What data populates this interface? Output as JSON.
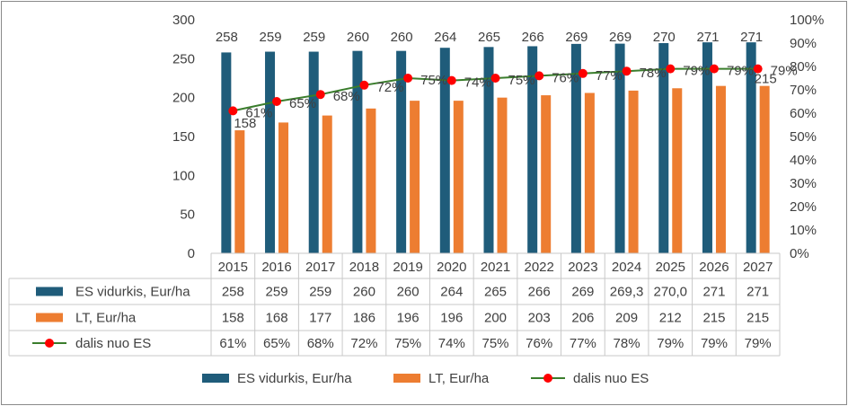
{
  "chart_data": {
    "type": "bar",
    "categories": [
      "2015",
      "2016",
      "2017",
      "2018",
      "2019",
      "2020",
      "2021",
      "2022",
      "2023",
      "2024",
      "2025",
      "2026",
      "2027"
    ],
    "series": [
      {
        "name": "ES vidurkis, Eur/ha",
        "kind": "bar",
        "axis": "left",
        "values": [
          258,
          259,
          259,
          260,
          260,
          264,
          265,
          266,
          269,
          269.3,
          270.0,
          271,
          271
        ],
        "data_labels": [
          "258",
          "259",
          "259",
          "260",
          "260",
          "264",
          "265",
          "266",
          "269",
          "269",
          "270",
          "271",
          "271"
        ],
        "table_labels": [
          "258",
          "259",
          "259",
          "260",
          "260",
          "264",
          "265",
          "266",
          "269",
          "269,3",
          "270,0",
          "271",
          "271"
        ],
        "color": "#1f5c7a"
      },
      {
        "name": "LT, Eur/ha",
        "kind": "bar",
        "axis": "left",
        "values": [
          158,
          168,
          177,
          186,
          196,
          196,
          200,
          203,
          206,
          209,
          212,
          215,
          215
        ],
        "data_labels": [
          "158",
          "",
          "",
          "",
          "",
          "",
          "",
          "",
          "",
          "",
          "",
          "",
          "215"
        ],
        "table_labels": [
          "158",
          "168",
          "177",
          "186",
          "196",
          "196",
          "200",
          "203",
          "206",
          "209",
          "212",
          "215",
          "215"
        ],
        "color": "#ed7d31"
      },
      {
        "name": "dalis nuo ES",
        "kind": "line",
        "axis": "right",
        "values": [
          61,
          65,
          68,
          72,
          75,
          74,
          75,
          76,
          77,
          78,
          79,
          79,
          79
        ],
        "data_labels": [
          "61%",
          "65%",
          "68%",
          "72%",
          "75%",
          "74%",
          "75%",
          "76%",
          "77%",
          "78%",
          "79%",
          "79%",
          "79%"
        ],
        "table_labels": [
          "61%",
          "65%",
          "68%",
          "72%",
          "75%",
          "74%",
          "75%",
          "76%",
          "77%",
          "78%",
          "79%",
          "79%",
          "79%"
        ],
        "color": "#3a7d2c",
        "marker_color": "#ff0000"
      }
    ],
    "y_left": {
      "min": 0,
      "max": 300,
      "ticks": [
        "0",
        "50",
        "100",
        "150",
        "200",
        "250",
        "300"
      ]
    },
    "y_right": {
      "min": 0,
      "max": 100,
      "ticks": [
        "0%",
        "10%",
        "20%",
        "30%",
        "40%",
        "50%",
        "60%",
        "70%",
        "80%",
        "90%",
        "100%"
      ]
    },
    "legend_position": "bottom",
    "data_table": true,
    "grid": false
  }
}
